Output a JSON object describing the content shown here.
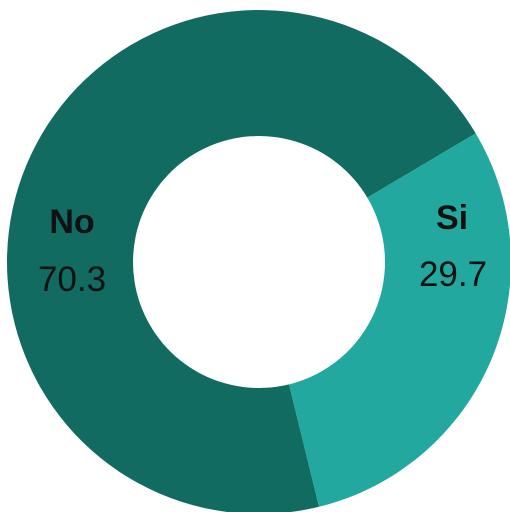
{
  "chart_data": {
    "type": "pie",
    "variant": "donut",
    "title": "",
    "slices": [
      {
        "label": "No",
        "value": 70.3,
        "color": "#116B61"
      },
      {
        "label": "Si",
        "value": 29.7,
        "color": "#22A89E"
      }
    ]
  },
  "labels": {
    "no_name": "No",
    "no_value": "70.3",
    "si_name": "Si",
    "si_value": "29.7"
  }
}
